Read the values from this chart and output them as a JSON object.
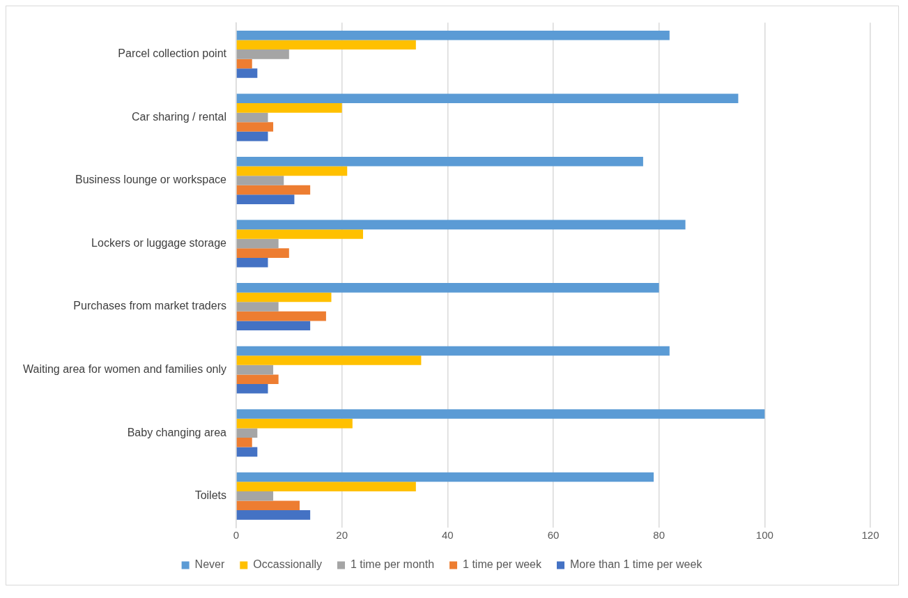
{
  "chart_data": {
    "type": "bar",
    "orientation": "horizontal",
    "categories": [
      "Parcel collection point",
      "Car sharing / rental",
      "Business lounge or workspace",
      "Lockers or luggage storage",
      "Purchases from market traders",
      "Waiting area for women and families only",
      "Baby changing area",
      "Toilets"
    ],
    "series": [
      {
        "name": "Never",
        "color": "#5b9bd5",
        "values": [
          82,
          95,
          77,
          85,
          80,
          82,
          100,
          79
        ]
      },
      {
        "name": "Occassionally",
        "color": "#ffc000",
        "values": [
          34,
          20,
          21,
          24,
          18,
          35,
          22,
          34
        ]
      },
      {
        "name": "1 time per month",
        "color": "#a5a5a5",
        "values": [
          10,
          6,
          9,
          8,
          8,
          7,
          4,
          7
        ]
      },
      {
        "name": "1 time per week",
        "color": "#ed7d31",
        "values": [
          3,
          7,
          14,
          10,
          17,
          8,
          3,
          12
        ]
      },
      {
        "name": "More than 1 time per week",
        "color": "#4472c4",
        "values": [
          4,
          6,
          11,
          6,
          14,
          6,
          4,
          14
        ]
      }
    ],
    "xlim": [
      0,
      120
    ],
    "xticks": [
      0,
      20,
      40,
      60,
      80,
      100,
      120
    ],
    "grid": "x",
    "legend": "bottom"
  }
}
